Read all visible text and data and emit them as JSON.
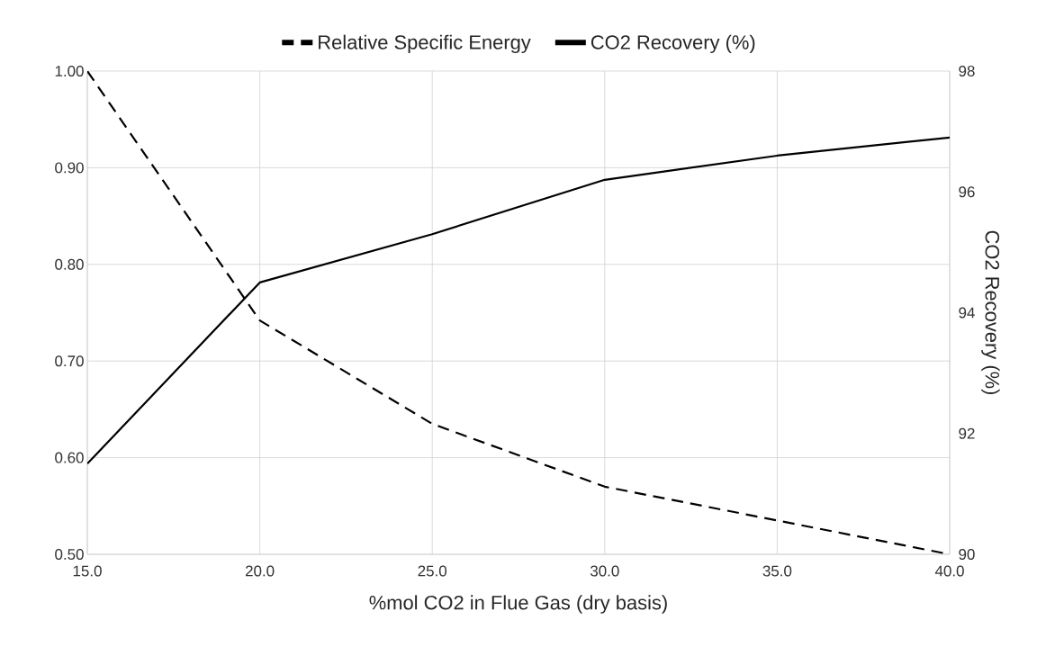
{
  "chart_data": {
    "type": "line",
    "xlabel": "%mol CO2 in Flue Gas (dry basis)",
    "y2label": "CO2 Recovery (%)",
    "x": [
      15,
      20,
      25,
      30,
      35,
      40
    ],
    "series": [
      {
        "name": "Relative Specific Energy",
        "color": "#000000",
        "line_style": "dashed",
        "values": [
          1.0,
          0.742,
          0.635,
          0.57,
          0.535,
          0.5
        ]
      },
      {
        "name": "CO2 Recovery (%)",
        "color": "#000000",
        "line_style": "solid",
        "axis": "y2",
        "values": [
          91.5,
          94.5,
          95.3,
          96.2,
          96.6,
          96.9
        ]
      }
    ],
    "xlim": [
      15,
      40
    ],
    "xticks": [
      {
        "value": 15,
        "label": "15.0"
      },
      {
        "value": 20,
        "label": "20.0"
      },
      {
        "value": 25,
        "label": "25.0"
      },
      {
        "value": 30,
        "label": "30.0"
      },
      {
        "value": 35,
        "label": "35.0"
      },
      {
        "value": 40,
        "label": "40.0"
      }
    ],
    "ylim": [
      0.5,
      1.0
    ],
    "yticks": [
      {
        "value": 0.5,
        "label": "0.50"
      },
      {
        "value": 0.6,
        "label": "0.60"
      },
      {
        "value": 0.7,
        "label": "0.70"
      },
      {
        "value": 0.8,
        "label": "0.80"
      },
      {
        "value": 0.9,
        "label": "0.90"
      },
      {
        "value": 1.0,
        "label": "1.00"
      }
    ],
    "y2lim": [
      90,
      98
    ],
    "y2ticks": [
      90,
      92,
      94,
      96,
      98
    ],
    "grid": true,
    "legend": "top",
    "marker": "none"
  }
}
